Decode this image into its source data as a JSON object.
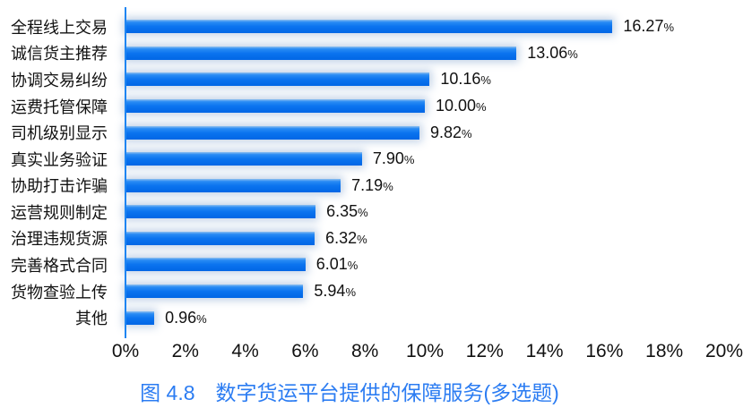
{
  "figure": {
    "caption": "图 4.8　数字货运平台提供的保障服务(多选题)"
  },
  "chart_data": {
    "type": "bar",
    "orientation": "horizontal",
    "title": "图 4.8　数字货运平台提供的保障服务(多选题)",
    "categories": [
      "全程线上交易",
      "诚信货主推荐",
      "协调交易纠纷",
      "运费托管保障",
      "司机级别显示",
      "真实业务验证",
      "协助打击诈骗",
      "运营规则制定",
      "治理违规货源",
      "完善格式合同",
      "货物查验上传",
      "其他"
    ],
    "values": [
      16.27,
      13.06,
      10.16,
      10.0,
      9.82,
      7.9,
      7.19,
      6.35,
      6.32,
      6.01,
      5.94,
      0.96
    ],
    "values_text": [
      "16.27",
      "13.06",
      "10.16",
      "10.00",
      "9.82",
      "7.90",
      "7.19",
      "6.35",
      "6.32",
      "6.01",
      "5.94",
      "0.96"
    ],
    "percent_sign": "%",
    "x_tick_labels": [
      "0%",
      "2%",
      "4%",
      "6%",
      "8%",
      "10%",
      "12%",
      "14%",
      "16%",
      "18%",
      "20%"
    ],
    "xlim": [
      0,
      20
    ],
    "grid": false,
    "legend": false,
    "bar_color": "#0b74ef",
    "axis_line_color": "#1e85f2",
    "title_color": "#2b7cf2",
    "label_color": "#111111"
  }
}
